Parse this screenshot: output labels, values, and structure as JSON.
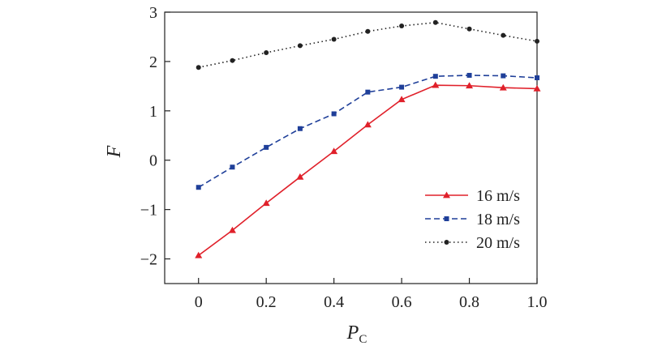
{
  "chart_data": {
    "type": "line",
    "title": "",
    "xlabel": "P",
    "xlabel_sub": "C",
    "ylabel": "F",
    "x": [
      0,
      0.1,
      0.2,
      0.3,
      0.4,
      0.5,
      0.6,
      0.7,
      0.8,
      0.9,
      1.0
    ],
    "xlim": [
      -0.1,
      1.0
    ],
    "ylim": [
      -2.5,
      3
    ],
    "x_ticks": [
      0,
      0.2,
      0.4,
      0.6,
      0.8,
      1.0
    ],
    "x_tick_labels": [
      "0",
      "0.2",
      "0.4",
      "0.6",
      "0.8",
      "1.0"
    ],
    "y_ticks": [
      -2,
      -1,
      0,
      1,
      2,
      3
    ],
    "y_tick_labels": [
      "−2",
      "−1",
      "0",
      "1",
      "2",
      "3"
    ],
    "grid": false,
    "legend_position": "center-right",
    "series": [
      {
        "name": "16 m/s",
        "color": "#e0202a",
        "line_style": "solid",
        "marker": "triangle",
        "values": [
          -1.93,
          -1.42,
          -0.87,
          -0.34,
          0.18,
          0.72,
          1.23,
          1.52,
          1.51,
          1.47,
          1.45
        ]
      },
      {
        "name": "18 m/s",
        "color": "#1f3f99",
        "line_style": "dashed",
        "marker": "square",
        "values": [
          -0.55,
          -0.14,
          0.26,
          0.64,
          0.94,
          1.38,
          1.48,
          1.7,
          1.72,
          1.71,
          1.67
        ]
      },
      {
        "name": "20 m/s",
        "color": "#222222",
        "line_style": "dotted",
        "marker": "circle",
        "values": [
          1.88,
          2.02,
          2.18,
          2.32,
          2.45,
          2.61,
          2.72,
          2.79,
          2.66,
          2.53,
          2.41
        ]
      }
    ]
  }
}
